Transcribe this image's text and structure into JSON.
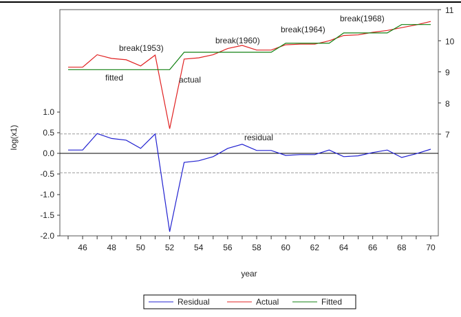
{
  "chart_data": {
    "type": "line",
    "ylabel": "log(x1)",
    "xlabel": "year",
    "x": [
      45,
      46,
      47,
      48,
      49,
      50,
      51,
      52,
      53,
      54,
      55,
      56,
      57,
      58,
      59,
      60,
      61,
      62,
      63,
      64,
      65,
      66,
      67,
      68,
      69,
      70
    ],
    "xticks": [
      "46",
      "48",
      "50",
      "52",
      "54",
      "56",
      "58",
      "60",
      "62",
      "64",
      "66",
      "68",
      "70"
    ],
    "left_axis": {
      "range": [
        -2.0,
        1.0
      ],
      "ticks": [
        "1.0",
        "0.5",
        "0.0",
        "-0.5",
        "-1.0",
        "-1.5",
        "-2.0"
      ]
    },
    "right_axis": {
      "range": [
        7,
        11
      ],
      "ticks": [
        "11",
        "10",
        "9",
        "8",
        "7"
      ]
    },
    "residual_band": [
      -0.47,
      0.47
    ],
    "series": [
      {
        "name": "Residual",
        "axis": "left",
        "color": "#2020d0",
        "values": [
          0.08,
          0.08,
          0.48,
          0.36,
          0.32,
          0.12,
          0.47,
          -1.9,
          -0.22,
          -0.18,
          -0.08,
          0.12,
          0.22,
          0.07,
          0.07,
          -0.05,
          -0.03,
          -0.03,
          0.08,
          -0.08,
          -0.06,
          0.02,
          0.08,
          -0.1,
          -0.01,
          0.1
        ]
      },
      {
        "name": "Actual",
        "axis": "right",
        "color": "#e02020",
        "values": [
          9.15,
          9.15,
          9.55,
          9.43,
          9.39,
          9.19,
          9.54,
          7.17,
          9.41,
          9.45,
          9.55,
          9.75,
          9.85,
          9.7,
          9.7,
          9.87,
          9.89,
          9.89,
          10.0,
          10.17,
          10.19,
          10.27,
          10.33,
          10.42,
          10.51,
          10.62
        ]
      },
      {
        "name": "Fitted",
        "axis": "right",
        "color": "#108010",
        "values": [
          9.07,
          9.07,
          9.07,
          9.07,
          9.07,
          9.07,
          9.07,
          9.07,
          9.63,
          9.63,
          9.63,
          9.63,
          9.63,
          9.63,
          9.63,
          9.92,
          9.92,
          9.92,
          9.92,
          10.25,
          10.25,
          10.25,
          10.25,
          10.52,
          10.52,
          10.52
        ]
      }
    ],
    "annotations": [
      "break(1953)",
      "fitted",
      "actual",
      "break(1960)",
      "break(1964)",
      "break(1968)",
      "residual"
    ],
    "legend": [
      "Residual",
      "Actual",
      "Fitted"
    ],
    "legend_position": "bottom"
  }
}
